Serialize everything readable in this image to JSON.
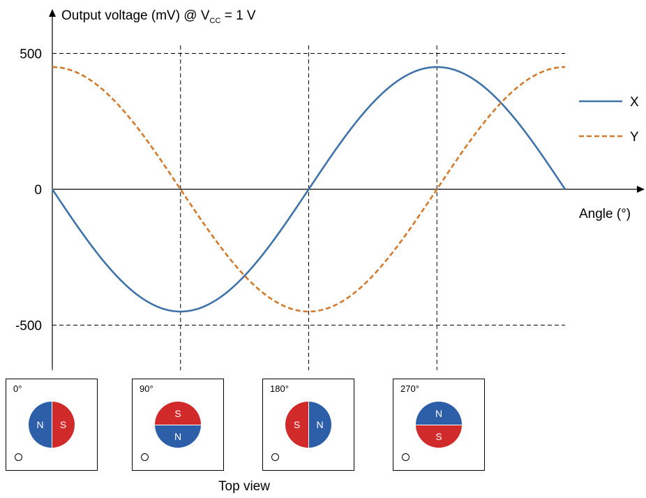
{
  "chart_data": {
    "type": "line",
    "title": "Output voltage (mV) @ V",
    "title_subscript": "CC",
    "title_suffix": " = 1 V",
    "xlabel": "Angle (°)",
    "ylabel": "Output voltage (mV) @ VCC = 1 V",
    "xlim": [
      0,
      360
    ],
    "ylim": [
      -500,
      500
    ],
    "y_ticks": [
      500,
      0,
      -500
    ],
    "y_tick_labels": [
      "500",
      "0",
      "-500"
    ],
    "x_grid_angles": [
      0,
      90,
      180,
      270
    ],
    "amplitude_mV": 450,
    "grid": true,
    "legend_position": "right",
    "series": [
      {
        "name": "X",
        "style": "solid",
        "color": "#3e72a8",
        "x": [
          0,
          45,
          90,
          135,
          180,
          225,
          270,
          315,
          360
        ],
        "values": [
          0,
          -318,
          -450,
          -318,
          0,
          318,
          450,
          318,
          0
        ]
      },
      {
        "name": "Y",
        "style": "dashed",
        "color": "#d2792c",
        "x": [
          0,
          45,
          90,
          135,
          180,
          225,
          270,
          315,
          360
        ],
        "values": [
          450,
          318,
          0,
          -318,
          -450,
          -318,
          0,
          318,
          450
        ]
      }
    ]
  },
  "magnet_colors": {
    "N": "#2d5ea8",
    "S": "#d12a2a"
  },
  "panels": [
    {
      "angle": "0°",
      "orientation": "vertical",
      "first": "N",
      "second": "S"
    },
    {
      "angle": "90°",
      "orientation": "horizontal",
      "first": "S",
      "second": "N"
    },
    {
      "angle": "180°",
      "orientation": "vertical",
      "first": "S",
      "second": "N"
    },
    {
      "angle": "270°",
      "orientation": "horizontal",
      "first": "N",
      "second": "S"
    }
  ],
  "caption": "Top view"
}
